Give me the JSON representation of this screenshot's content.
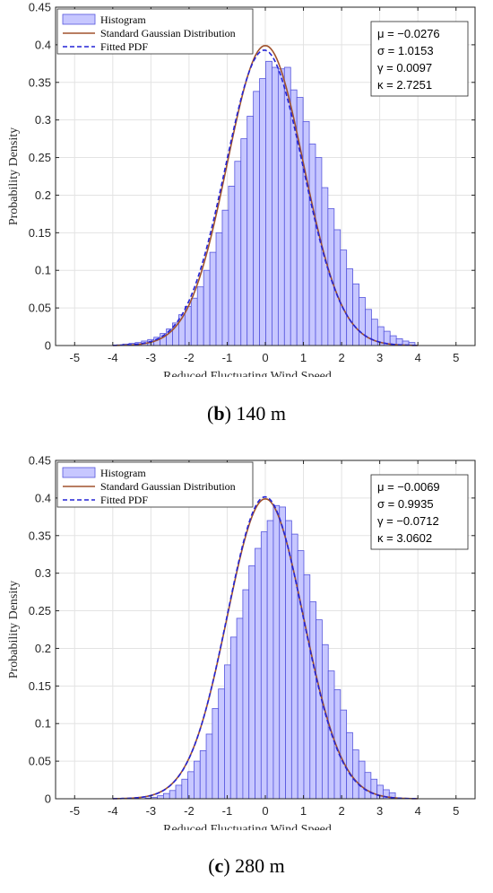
{
  "chart_data": [
    {
      "type": "bar",
      "caption": {
        "letter": "b",
        "text": " 140 m"
      },
      "xlabel": "Reduced Fluctuating Wind Speed",
      "ylabel": "Probability Density",
      "xlim": [
        -5.5,
        5.5
      ],
      "ylim": [
        0,
        0.45
      ],
      "xticks": [
        "-5",
        "-4",
        "-3",
        "-2",
        "-1",
        "0",
        "1",
        "2",
        "3",
        "4",
        "5"
      ],
      "yticks": [
        "0",
        "0.05",
        "0.1",
        "0.15",
        "0.2",
        "0.25",
        "0.3",
        "0.35",
        "0.4",
        "0.45"
      ],
      "grid": true,
      "legend_position": "top-left",
      "legend": [
        "Histogram",
        "Standard Gaussian Distribution",
        "Fitted PDF"
      ],
      "stats": [
        "μ = −0.0276",
        "σ = 1.0153",
        "γ = 0.0097",
        "κ = 2.7251"
      ],
      "fit": {
        "mu": -0.0276,
        "sigma": 1.0153
      },
      "bin_width": 0.163,
      "bin_start": -3.9,
      "histogram": [
        0.001,
        0.002,
        0.003,
        0.004,
        0.006,
        0.008,
        0.011,
        0.016,
        0.022,
        0.03,
        0.041,
        0.052,
        0.063,
        0.078,
        0.1,
        0.124,
        0.15,
        0.18,
        0.212,
        0.245,
        0.275,
        0.305,
        0.338,
        0.355,
        0.378,
        0.37,
        0.368,
        0.37,
        0.34,
        0.33,
        0.298,
        0.268,
        0.25,
        0.21,
        0.182,
        0.154,
        0.127,
        0.102,
        0.082,
        0.064,
        0.048,
        0.035,
        0.025,
        0.019,
        0.013,
        0.009,
        0.006,
        0.004
      ],
      "colors": {
        "bar_fill": "#c7c7ff",
        "bar_edge": "#5555dd",
        "gauss": "#a0522d",
        "fitted": "#2424d6"
      }
    },
    {
      "type": "bar",
      "caption": {
        "letter": "c",
        "text": " 280 m"
      },
      "xlabel": "Reduced Fluctuating Wind Speed",
      "ylabel": "Probability Density",
      "xlim": [
        -5.5,
        5.5
      ],
      "ylim": [
        0,
        0.45
      ],
      "xticks": [
        "-5",
        "-4",
        "-3",
        "-2",
        "-1",
        "0",
        "1",
        "2",
        "3",
        "4",
        "5"
      ],
      "yticks": [
        "0",
        "0.05",
        "0.1",
        "0.15",
        "0.2",
        "0.25",
        "0.3",
        "0.35",
        "0.4",
        "0.45"
      ],
      "grid": true,
      "legend_position": "top-left",
      "legend": [
        "Histogram",
        "Standard Gaussian Distribution",
        "Fitted PDF"
      ],
      "stats": [
        "μ = −0.0069",
        "σ = 0.9935",
        "γ = −0.0712",
        "κ = 3.0602"
      ],
      "fit": {
        "mu": -0.0069,
        "sigma": 0.9935
      },
      "bin_width": 0.16,
      "bin_start": -3.15,
      "histogram": [
        0.001,
        0.002,
        0.004,
        0.007,
        0.011,
        0.018,
        0.026,
        0.036,
        0.05,
        0.064,
        0.086,
        0.12,
        0.146,
        0.178,
        0.215,
        0.24,
        0.278,
        0.31,
        0.333,
        0.355,
        0.37,
        0.39,
        0.388,
        0.37,
        0.352,
        0.33,
        0.298,
        0.262,
        0.238,
        0.205,
        0.17,
        0.145,
        0.118,
        0.088,
        0.065,
        0.05,
        0.035,
        0.026,
        0.018,
        0.012,
        0.008
      ],
      "colors": {
        "bar_fill": "#c7c7ff",
        "bar_edge": "#5555dd",
        "gauss": "#a0522d",
        "fitted": "#2424d6"
      }
    }
  ]
}
